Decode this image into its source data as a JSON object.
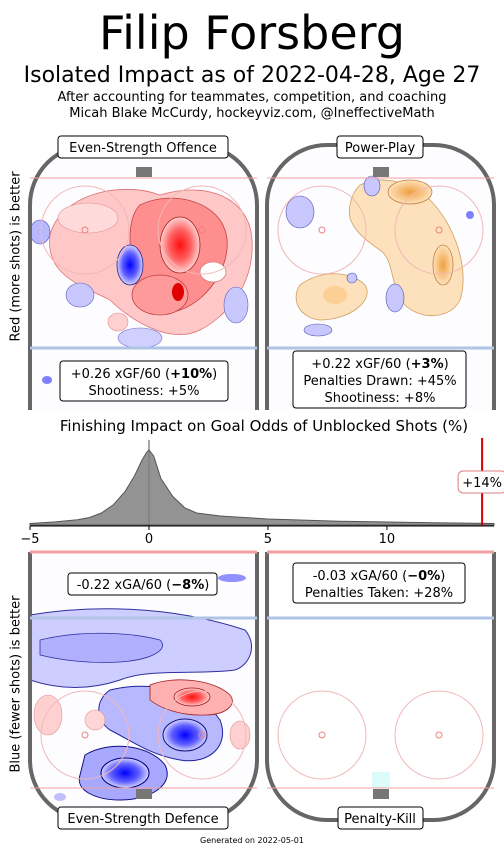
{
  "header": {
    "title": "Filip Forsberg",
    "subtitle": "Isolated Impact as of 2022-04-28, Age 27",
    "note_line1": "After accounting for teammates, competition, and coaching",
    "note_line2": "Micah Blake McCurdy, hockeyviz.com, @IneffectiveMath"
  },
  "axis_labels": {
    "top": "Red (more shots) is better",
    "bottom": "Blue (fewer shots) is better"
  },
  "panels": {
    "es_offence": {
      "label": "Even-Strength Offence",
      "stat_line1_prefix": "+0.26 xGF/60 (",
      "stat_line1_bold": "+10%",
      "stat_line1_suffix": ")",
      "stat_line2": "Shootiness: +5%"
    },
    "power_play": {
      "label": "Power-Play",
      "stat_line1_prefix": "+0.22 xGF/60 (",
      "stat_line1_bold": "+3%",
      "stat_line1_suffix": ")",
      "stat_line2": "Penalties Drawn: +45%",
      "stat_line3": "Shootiness: +8%"
    },
    "es_defence": {
      "label": "Even-Strength Defence",
      "stat_line1_prefix": "-0.22 xGA/60 (",
      "stat_line1_bold": "−8%",
      "stat_line1_suffix": ")"
    },
    "penalty_kill": {
      "label": "Penalty-Kill",
      "stat_line1_prefix": "-0.03 xGA/60 (",
      "stat_line1_bold": "−0%",
      "stat_line1_suffix": ")",
      "stat_line2": "Penalties Taken: +28%"
    }
  },
  "chart_data": {
    "type": "area",
    "title": "Finishing Impact on Goal Odds of Unblocked Shots (%)",
    "xlim": [
      -5,
      14.5
    ],
    "ticks": [
      -5,
      0,
      5,
      10
    ],
    "tick_labels": [
      "−5",
      "0",
      "5",
      "10"
    ],
    "x": [
      -5,
      -4,
      -3,
      -2.5,
      -2,
      -1.5,
      -1,
      -0.6,
      -0.3,
      -0.1,
      0,
      0.2,
      0.5,
      1,
      1.5,
      2,
      3,
      4,
      5,
      6,
      8,
      10,
      12,
      14.5
    ],
    "density": [
      0.02,
      0.04,
      0.07,
      0.1,
      0.16,
      0.27,
      0.45,
      0.66,
      0.86,
      0.97,
      1.0,
      0.92,
      0.62,
      0.38,
      0.23,
      0.16,
      0.12,
      0.1,
      0.08,
      0.07,
      0.05,
      0.04,
      0.03,
      0.02
    ],
    "reference_x": 0,
    "player_value": 14,
    "player_label": "+14%",
    "colors": {
      "density": "#808080",
      "player": "#d40000"
    }
  },
  "footer": "Generated on 2022-05-01"
}
